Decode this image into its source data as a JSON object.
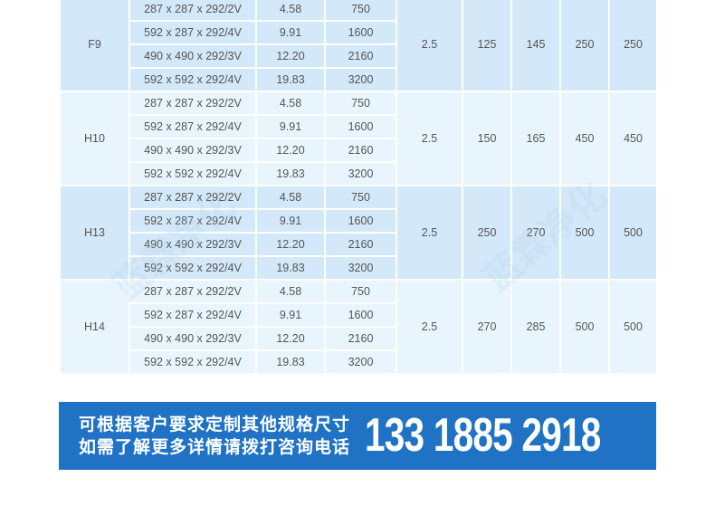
{
  "table": {
    "groups": [
      {
        "grade": "F9",
        "c1": "2.5",
        "c2": "125",
        "c3": "145",
        "c4": "250",
        "c5": "250"
      },
      {
        "grade": "H10",
        "c1": "2.5",
        "c2": "150",
        "c3": "165",
        "c4": "450",
        "c5": "450"
      },
      {
        "grade": "H13",
        "c1": "2.5",
        "c2": "250",
        "c3": "270",
        "c4": "500",
        "c5": "500"
      },
      {
        "grade": "H14",
        "c1": "2.5",
        "c2": "270",
        "c3": "285",
        "c4": "500",
        "c5": "500"
      }
    ],
    "rows": [
      {
        "size": "287 x 287 x 292/2V",
        "area": "4.58",
        "flow": "750"
      },
      {
        "size": "592 x 287 x 292/4V",
        "area": "9.91",
        "flow": "1600"
      },
      {
        "size": "490 x 490 x 292/3V",
        "area": "12.20",
        "flow": "2160"
      },
      {
        "size": "592 x 592 x 292/4V",
        "area": "19.83",
        "flow": "3200"
      }
    ]
  },
  "banner": {
    "line1": "可根据客户要求定制其他规格尺寸",
    "line2": "如需了解更多详情请拨打咨询电话",
    "phone": "133 1885 2918",
    "color": "#1f72c4"
  },
  "watermark": "蓝霖净化"
}
